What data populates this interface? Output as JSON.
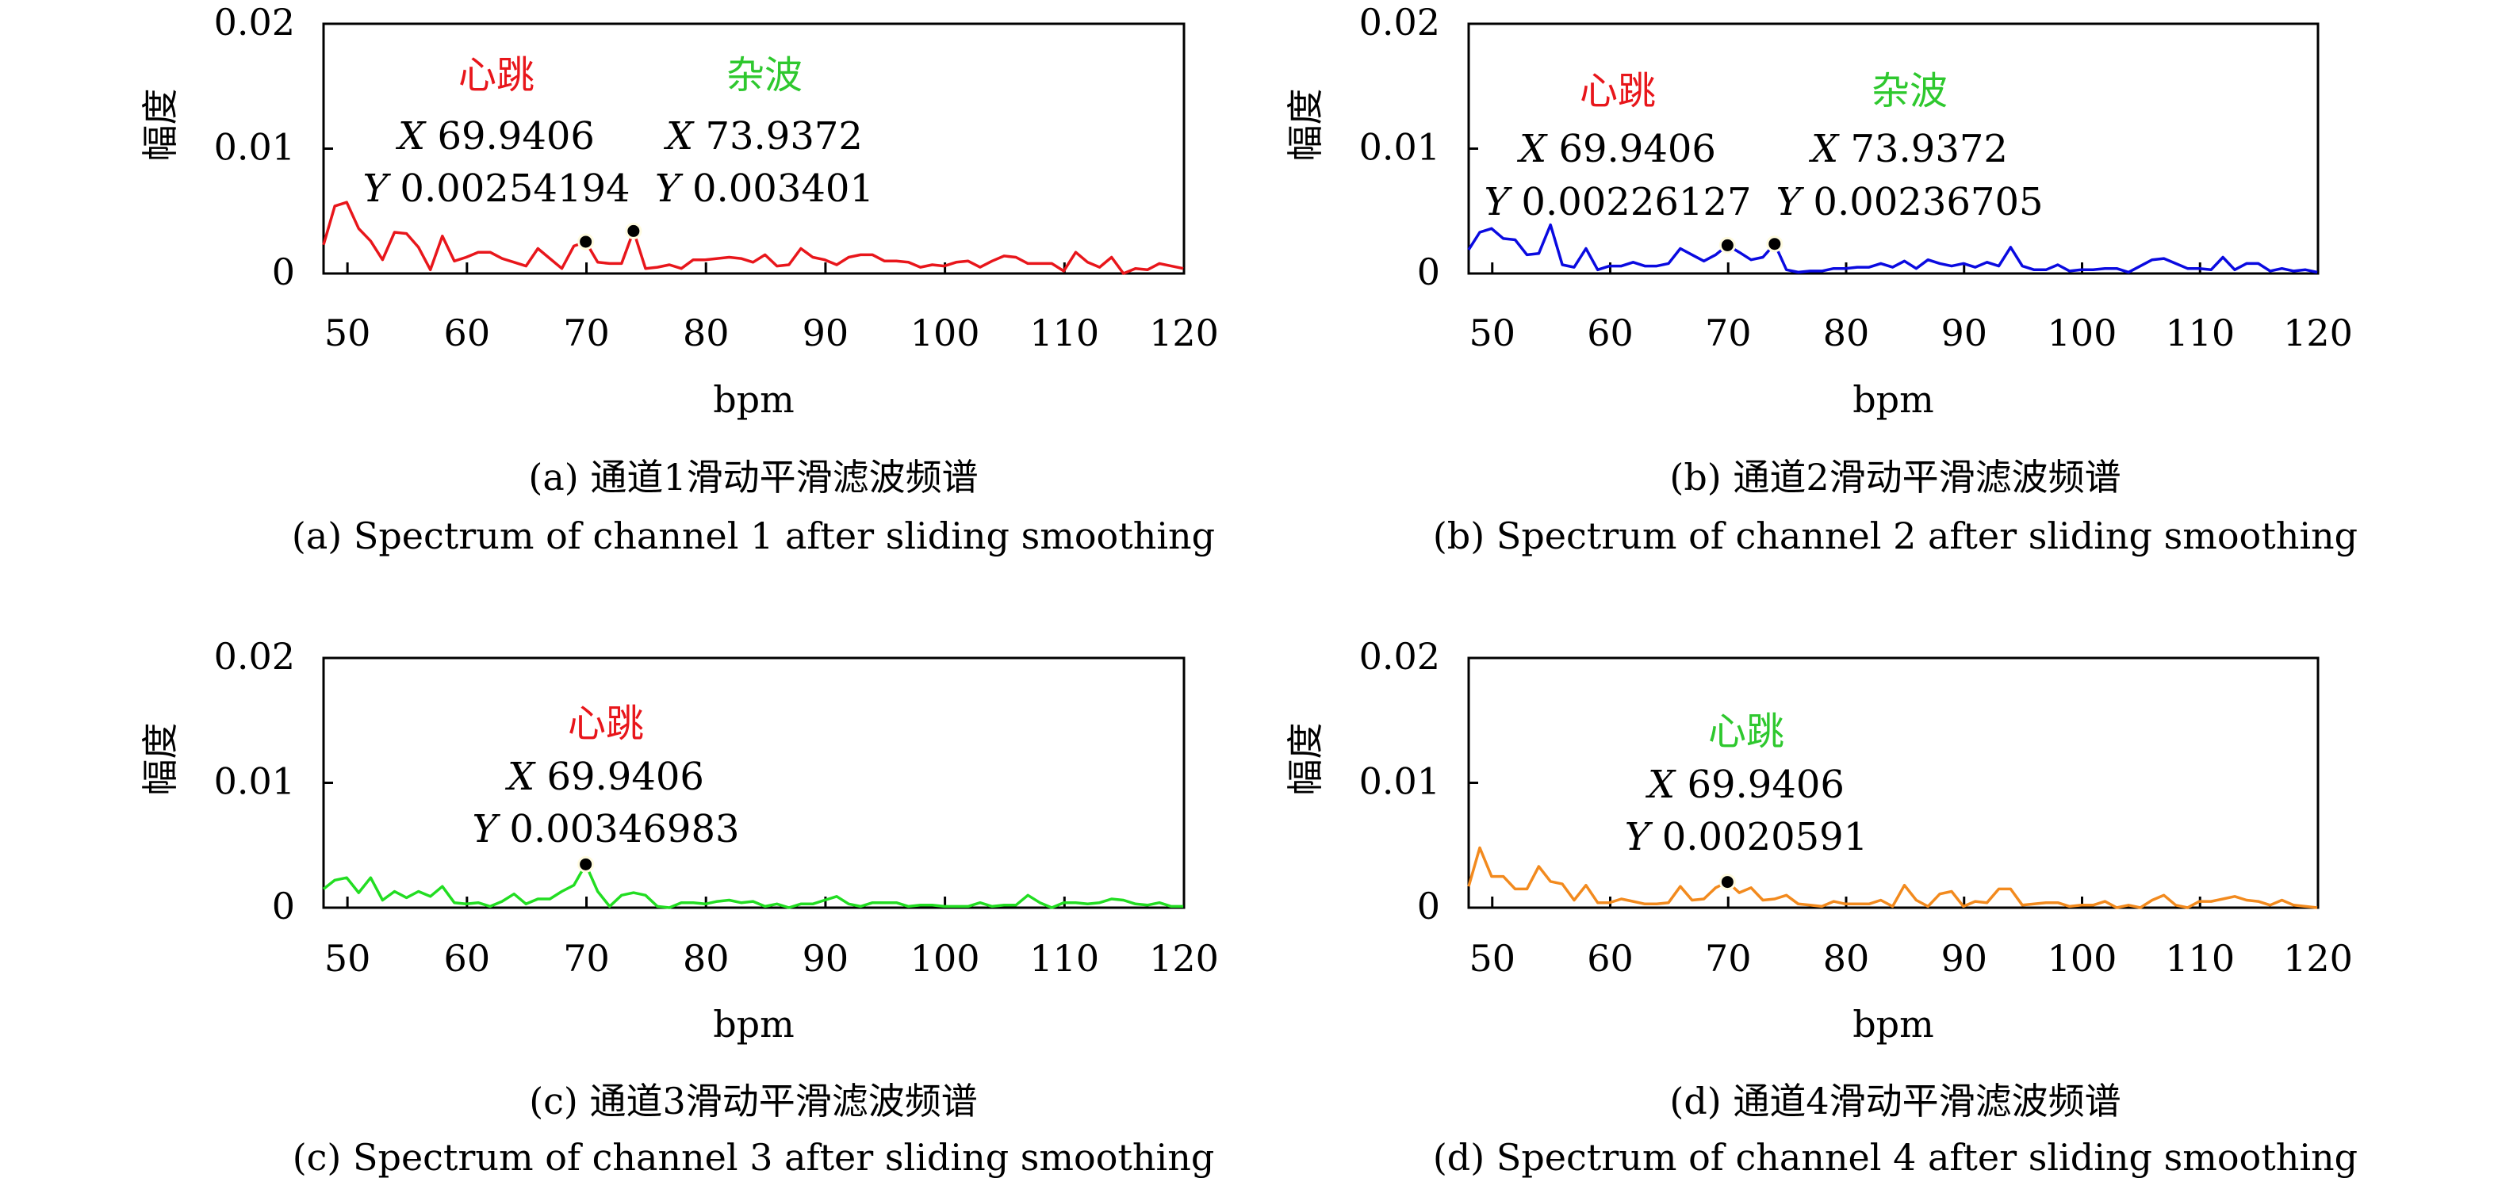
{
  "chart_data": [
    {
      "type": "line",
      "id": "a",
      "caption_cn": "(a) 通道1滑动平滑滤波频谱",
      "caption_en": "(a) Spectrum of channel 1 after sliding smoothing",
      "xlabel": "bpm",
      "ylabel": "幅度",
      "xlim": [
        48,
        120
      ],
      "ylim": [
        0,
        0.02
      ],
      "xticks": [
        "50",
        "60",
        "70",
        "80",
        "90",
        "100",
        "110",
        "120"
      ],
      "yticks": [
        "0",
        "0.01",
        "0.02"
      ],
      "color": "#e8161b",
      "x_start": 47.94,
      "x_step": 1,
      "values": [
        0.0023,
        0.0054,
        0.0057,
        0.0036,
        0.0026,
        0.0011,
        0.0033,
        0.0032,
        0.0021,
        0.0003,
        0.003,
        0.001,
        0.0013,
        0.0017,
        0.0017,
        0.0012,
        0.0009,
        0.0006,
        0.002,
        0.0012,
        0.0004,
        0.0022,
        0.00254194,
        0.0009,
        0.0008,
        0.0008,
        0.003401,
        0.0004,
        0.0005,
        0.0007,
        0.0004,
        0.0011,
        0.0011,
        0.0012,
        0.0013,
        0.0012,
        0.0009,
        0.0015,
        0.0006,
        0.0007,
        0.002,
        0.0013,
        0.0011,
        0.0007,
        0.0013,
        0.0015,
        0.0015,
        0.001,
        0.001,
        0.0009,
        0.0005,
        0.0007,
        0.0006,
        0.0009,
        0.001,
        0.0005,
        0.001,
        0.0014,
        0.0013,
        0.0008,
        0.0008,
        0.0008,
        0.0002,
        0.0017,
        0.0009,
        0.0005,
        0.0013,
        0.0,
        0.0004,
        0.0003,
        0.0008,
        0.0006,
        0.0004
      ],
      "annotations": [
        {
          "label": "心跳",
          "label_color": "#e8161b",
          "x_text": "69.9406",
          "y_text": "0.00254194",
          "x": 69.9406,
          "y": 0.00254194
        },
        {
          "label": "杂波",
          "label_color": "#2ec82e",
          "x_text": "73.9372",
          "y_text": "0.003401",
          "x": 73.9372,
          "y": 0.003401
        }
      ]
    },
    {
      "type": "line",
      "id": "b",
      "caption_cn": "(b) 通道2滑动平滑滤波频谱",
      "caption_en": "(b) Spectrum of channel 2 after sliding smoothing",
      "xlabel": "bpm",
      "ylabel": "幅度",
      "xlim": [
        48,
        120
      ],
      "ylim": [
        0,
        0.02
      ],
      "xticks": [
        "50",
        "60",
        "70",
        "80",
        "90",
        "100",
        "110",
        "120"
      ],
      "yticks": [
        "0",
        "0.01",
        "0.02"
      ],
      "color": "#0a0ae0",
      "x_start": 47.94,
      "x_step": 1,
      "values": [
        0.0019,
        0.0033,
        0.0036,
        0.0028,
        0.0027,
        0.0015,
        0.0016,
        0.0039,
        0.0007,
        0.0005,
        0.002,
        0.0003,
        0.0006,
        0.0006,
        0.0009,
        0.0006,
        0.0006,
        0.0008,
        0.002,
        0.0015,
        0.001,
        0.0015,
        0.00226127,
        0.0017,
        0.0011,
        0.0013,
        0.00236705,
        0.0003,
        0.0001,
        0.0002,
        0.0002,
        0.0004,
        0.0004,
        0.0005,
        0.0005,
        0.0008,
        0.0005,
        0.001,
        0.0004,
        0.0011,
        0.0008,
        0.0006,
        0.0008,
        0.0005,
        0.0009,
        0.0006,
        0.0021,
        0.0006,
        0.0003,
        0.0003,
        0.0007,
        0.0002,
        0.0003,
        0.0003,
        0.0004,
        0.0004,
        0.0001,
        0.0006,
        0.0011,
        0.0012,
        0.0008,
        0.0004,
        0.0004,
        0.0003,
        0.0013,
        0.0003,
        0.0008,
        0.0008,
        0.0002,
        0.0004,
        0.0002,
        0.0003,
        0.0001
      ],
      "annotations": [
        {
          "label": "心跳",
          "label_color": "#e8161b",
          "x_text": "69.9406",
          "y_text": "0.00226127",
          "x": 69.9406,
          "y": 0.00226127
        },
        {
          "label": "杂波",
          "label_color": "#2ec82e",
          "x_text": "73.9372",
          "y_text": "0.00236705",
          "x": 73.9372,
          "y": 0.00236705
        }
      ]
    },
    {
      "type": "line",
      "id": "c",
      "caption_cn": "(c) 通道3滑动平滑滤波频谱",
      "caption_en": "(c) Spectrum of channel 3 after sliding smoothing",
      "xlabel": "bpm",
      "ylabel": "幅度",
      "xlim": [
        48,
        120
      ],
      "ylim": [
        0,
        0.02
      ],
      "xticks": [
        "50",
        "60",
        "70",
        "80",
        "90",
        "100",
        "110",
        "120"
      ],
      "yticks": [
        "0",
        "0.01",
        "0.02"
      ],
      "color": "#22dd22",
      "x_start": 47.94,
      "x_step": 1,
      "values": [
        0.0015,
        0.0022,
        0.0024,
        0.0012,
        0.0024,
        0.0006,
        0.0013,
        0.0008,
        0.0013,
        0.0009,
        0.0017,
        0.0004,
        0.0003,
        0.0004,
        0.0001,
        0.0005,
        0.0011,
        0.0003,
        0.0007,
        0.0007,
        0.0013,
        0.0018,
        0.00346983,
        0.0013,
        0.0001,
        0.001,
        0.0012,
        0.001,
        0.0001,
        0.0,
        0.0004,
        0.0004,
        0.0003,
        0.0005,
        0.0006,
        0.0004,
        0.0005,
        0.0001,
        0.0003,
        0.0,
        0.0003,
        0.0003,
        0.0006,
        0.0009,
        0.0003,
        0.0001,
        0.0004,
        0.0004,
        0.0004,
        0.0001,
        0.0002,
        0.0002,
        0.0001,
        0.0001,
        0.0001,
        0.0004,
        0.0001,
        0.0002,
        0.0002,
        0.001,
        0.0004,
        0.0,
        0.0004,
        0.0004,
        0.0003,
        0.0004,
        0.0007,
        0.0006,
        0.0003,
        0.0002,
        0.0004,
        0.0001,
        0.0001
      ],
      "annotations": [
        {
          "label": "心跳",
          "label_color": "#e8161b",
          "x_text": "69.9406",
          "y_text": "0.00346983",
          "x": 69.9406,
          "y": 0.00346983
        }
      ]
    },
    {
      "type": "line",
      "id": "d",
      "caption_cn": "(d) 通道4滑动平滑滤波频谱",
      "caption_en": "(d) Spectrum of channel 4 after sliding smoothing",
      "xlabel": "bpm",
      "ylabel": "幅度",
      "xlim": [
        48,
        120
      ],
      "ylim": [
        0,
        0.02
      ],
      "xticks": [
        "50",
        "60",
        "70",
        "80",
        "90",
        "100",
        "110",
        "120"
      ],
      "yticks": [
        "0",
        "0.01",
        "0.02"
      ],
      "color": "#f28a1e",
      "x_start": 47.94,
      "x_step": 1,
      "values": [
        0.0017,
        0.0048,
        0.0025,
        0.0025,
        0.0015,
        0.0015,
        0.0033,
        0.0021,
        0.0019,
        0.0006,
        0.0018,
        0.0004,
        0.0004,
        0.0007,
        0.0005,
        0.0003,
        0.0003,
        0.0004,
        0.0017,
        0.0006,
        0.0007,
        0.0016,
        0.0020591,
        0.0012,
        0.0016,
        0.0006,
        0.0007,
        0.001,
        0.0003,
        0.0002,
        0.0001,
        0.0005,
        0.0003,
        0.0003,
        0.0003,
        0.0006,
        0.0001,
        0.0018,
        0.0006,
        0.0001,
        0.0011,
        0.0013,
        0.0001,
        0.0005,
        0.0004,
        0.0015,
        0.0015,
        0.0002,
        0.0003,
        0.0004,
        0.0004,
        0.0001,
        0.0002,
        0.0002,
        0.0005,
        0.0,
        0.0002,
        0.0,
        0.0006,
        0.001,
        0.0002,
        0.0,
        0.0005,
        0.0005,
        0.0007,
        0.0009,
        0.0006,
        0.0005,
        0.0002,
        0.0006,
        0.0002,
        0.0001,
        0.0
      ],
      "annotations": [
        {
          "label": "心跳",
          "label_color": "#2ec82e",
          "x_text": "69.9406",
          "y_text": "0.0020591",
          "x": 69.9406,
          "y": 0.0020591
        }
      ]
    }
  ]
}
